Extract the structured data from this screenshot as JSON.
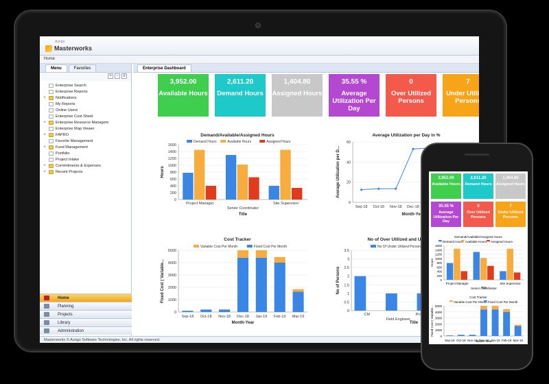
{
  "app": {
    "logo_small": "Aurigo",
    "brand": "Masterworks",
    "breadcrumb": "Home",
    "footer": "Masterworks © Aurigo Software Technologies, Inc. All rights reserved."
  },
  "sidebar": {
    "tabs": [
      "Menu",
      "Favorites"
    ],
    "tools": [
      "+",
      "−",
      "≡"
    ],
    "items": [
      {
        "label": "Enterprise Search",
        "folder": false,
        "exp": ""
      },
      {
        "label": "Enterprise Reports",
        "folder": false,
        "exp": ""
      },
      {
        "label": "Notifications",
        "folder": true,
        "exp": "+"
      },
      {
        "label": "My Reports",
        "folder": false,
        "exp": ""
      },
      {
        "label": "Online Users",
        "folder": false,
        "exp": ""
      },
      {
        "label": "Enterprise Cost Sheet",
        "folder": false,
        "exp": ""
      },
      {
        "label": "Enterprise Resource Managem",
        "folder": true,
        "exp": "+"
      },
      {
        "label": "Enterprise Map Viewer",
        "folder": false,
        "exp": ""
      },
      {
        "label": "FAPRO",
        "folder": true,
        "exp": "+"
      },
      {
        "label": "Favorite Management",
        "folder": false,
        "exp": ""
      },
      {
        "label": "Fund Management",
        "folder": true,
        "exp": "+"
      },
      {
        "label": "Portfolio",
        "folder": false,
        "exp": ""
      },
      {
        "label": "Project Intake",
        "folder": false,
        "exp": ""
      },
      {
        "label": "Commitments & Expenses",
        "folder": true,
        "exp": "+"
      },
      {
        "label": "Recent Projects",
        "folder": true,
        "exp": "+"
      }
    ],
    "modules": [
      "Home",
      "Planning",
      "Projects",
      "Library",
      "Administration"
    ]
  },
  "content": {
    "tab": "Enterprise Dashboard"
  },
  "kpis": [
    {
      "value": "3,952.00",
      "label": "Available Hours",
      "color": "#3fce4e"
    },
    {
      "value": "2,611.20",
      "label": "Demand Hours",
      "color": "#1ec9c9"
    },
    {
      "value": "1,404.80",
      "label": "Assigned Hours",
      "color": "#c8c8c8"
    },
    {
      "value": "35.55 %",
      "label": "Average Utilization Per Day",
      "color": "#b548d1"
    },
    {
      "value": "0",
      "label": "Over Utilized Persons",
      "color": "#f35a4b"
    },
    {
      "value": "7",
      "label": "Under Utilized Persons",
      "color": "#f8a418"
    }
  ],
  "chart_data": [
    {
      "type": "bar",
      "title": "Demand/Available/Assigned Hours",
      "xlabel": "Title",
      "ylabel": "Hours",
      "ylim": [
        0,
        1600
      ],
      "yticks": [
        "0",
        "200",
        "400",
        "600",
        "800",
        "1000",
        "1200",
        "1400",
        "1600"
      ],
      "categories": [
        "Project Manager",
        "Senior Coordinator",
        "Site Supervisor"
      ],
      "series": [
        {
          "name": "Demand Hours",
          "color": "#3a86e6",
          "values": [
            780,
            1300,
            400
          ]
        },
        {
          "name": "Available Hours",
          "color": "#f7ac3d",
          "values": [
            1450,
            1020,
            1450
          ]
        },
        {
          "name": "Assigned Hours",
          "color": "#df3b1c",
          "values": [
            400,
            650,
            340
          ]
        }
      ]
    },
    {
      "type": "line",
      "title": "Average Utilization per Day in %",
      "xlabel": "Month-Year",
      "ylabel": "Average Utilization per D...",
      "ylim": [
        0,
        60
      ],
      "yticks": [
        "0",
        "20",
        "40",
        "60"
      ],
      "categories": [
        "Sep-18",
        "Oct-18",
        "Nov-18",
        "Dec-18",
        "Jan-19",
        "Feb-19",
        "Mar-19"
      ],
      "series": [
        {
          "name": "",
          "color": "#3a86e6",
          "values": [
            12.5,
            13.5,
            13.5,
            53,
            54,
            54,
            54
          ]
        }
      ]
    },
    {
      "type": "bar",
      "title": "Cost Tracker",
      "xlabel": "Month-Year",
      "ylabel": "Fixed Cost ( Variable...",
      "ylim": [
        0,
        5000
      ],
      "yticks": [
        "0",
        "1000",
        "2000",
        "3000",
        "4000",
        "5000"
      ],
      "categories": [
        "Sep-18",
        "Oct-18",
        "Nov-18",
        "Dec-18",
        "Jan-19",
        "Feb-19",
        "Mar-19"
      ],
      "stacked": true,
      "series": [
        {
          "name": "Fixed Cost Per Month",
          "color": "#3a86e6",
          "values": [
            100,
            200,
            200,
            4400,
            4400,
            4000,
            1650
          ]
        },
        {
          "name": "Variable Cost Per Month",
          "color": "#f7ac3d",
          "values": [
            0,
            0,
            0,
            600,
            600,
            450,
            200
          ]
        }
      ]
    },
    {
      "type": "bar",
      "title": "No of Over Utilized and Under Utilize",
      "xlabel": "Title",
      "ylabel": "No of Persons",
      "ylim": [
        0,
        3.5
      ],
      "yticks": [
        "0",
        "0.5",
        "1",
        "1.5",
        "2",
        "2.5",
        "3",
        "3.5"
      ],
      "categories": [
        "CM",
        "Field Engineer",
        "Project Manager",
        "Senio"
      ],
      "series": [
        {
          "name": "No Of Under Utilized Persons",
          "color": "#3a86e6",
          "values": [
            2,
            1,
            1,
            1
          ]
        },
        {
          "name": "No",
          "color": "#f7ac3d",
          "values": [
            0,
            0,
            0,
            0
          ]
        }
      ]
    }
  ]
}
